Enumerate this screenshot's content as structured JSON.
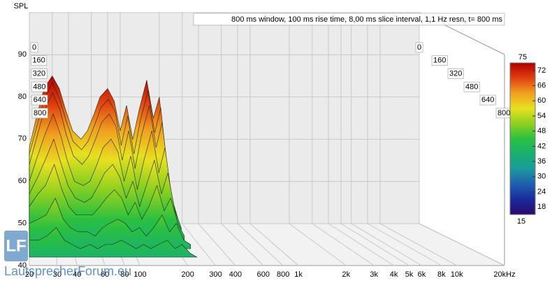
{
  "chart_data": {
    "type": "waterfall",
    "title": "800 ms window, 100 ms rise time, 8,00 ms slice interval, 1,1 Hz resn, t= 800 ms",
    "y_label": "SPL",
    "xlim": [
      20,
      20000
    ],
    "log_x": true,
    "xticks": [
      20,
      30,
      40,
      60,
      80,
      100,
      200,
      300,
      400,
      600,
      800,
      {
        "value": 1000,
        "label": "1k"
      },
      {
        "value": 2000,
        "label": "2k"
      },
      {
        "value": 3000,
        "label": "3k"
      },
      {
        "value": 4000,
        "label": "4k"
      },
      {
        "value": 5000,
        "label": "5k"
      },
      {
        "value": 6000,
        "label": "6k"
      },
      {
        "value": 8000,
        "label": "8k"
      },
      {
        "value": 10000,
        "label": "10k"
      },
      {
        "value": 20000,
        "label": "20kHz"
      }
    ],
    "ylim": [
      40,
      90
    ],
    "yticks": [
      40,
      50,
      60,
      70,
      80,
      90
    ],
    "tlim": [
      0,
      800
    ],
    "tticks": [
      0,
      160,
      320,
      480,
      640,
      800
    ],
    "x": [
      20,
      23,
      26,
      30,
      34,
      38,
      43,
      50,
      56,
      63,
      70,
      80,
      90,
      100,
      112,
      125,
      140,
      160,
      180,
      200,
      225,
      250
    ],
    "times": [
      0,
      40,
      80,
      160,
      240,
      320,
      480,
      640
    ],
    "slices": [
      [
        58,
        66,
        72,
        75,
        72,
        67,
        62,
        60,
        62,
        66,
        70,
        72,
        69,
        62,
        68,
        60,
        67,
        74,
        65,
        70,
        55,
        46
      ],
      [
        57,
        64,
        70,
        74,
        70,
        65,
        60,
        58,
        60,
        64,
        68,
        70,
        67,
        59,
        66,
        57,
        65,
        72,
        62,
        68,
        53,
        45
      ],
      [
        55,
        62,
        68,
        72,
        68,
        62,
        57,
        55,
        57,
        61,
        65,
        67,
        64,
        56,
        63,
        54,
        62,
        69,
        59,
        65,
        51,
        44
      ],
      [
        52,
        58,
        63,
        68,
        63,
        57,
        52,
        51,
        52,
        56,
        60,
        62,
        59,
        52,
        58,
        50,
        57,
        64,
        54,
        60,
        48,
        43
      ],
      [
        50,
        54,
        58,
        63,
        57,
        52,
        49,
        48,
        49,
        52,
        55,
        57,
        54,
        49,
        53,
        47,
        52,
        58,
        50,
        55,
        46,
        42
      ],
      [
        48,
        51,
        53,
        58,
        52,
        48,
        46,
        46,
        46,
        48,
        50,
        52,
        50,
        46,
        49,
        45,
        48,
        53,
        47,
        50,
        44,
        41
      ],
      [
        46,
        47,
        48,
        52,
        47,
        45,
        44,
        44,
        43,
        45,
        46,
        47,
        46,
        44,
        45,
        43,
        45,
        48,
        44,
        46,
        42,
        41
      ],
      [
        44,
        44,
        45,
        47,
        44,
        43,
        42,
        43,
        42,
        43,
        43,
        44,
        43,
        42,
        43,
        42,
        43,
        44,
        42,
        43,
        41,
        40
      ]
    ],
    "colorbar": {
      "lim": [
        15,
        75
      ],
      "ticks": [
        18,
        24,
        30,
        36,
        42,
        48,
        54,
        60,
        66,
        72
      ],
      "colors": [
        "#2a0a6e",
        "#1a2a9a",
        "#1f5fb0",
        "#1a9a9a",
        "#18b070",
        "#2cc040",
        "#8ed020",
        "#e8e020",
        "#f0a020",
        "#e04010",
        "#b00000"
      ]
    }
  },
  "watermark": {
    "logo": "LF",
    "text": "LautsprecherForum.eu"
  }
}
